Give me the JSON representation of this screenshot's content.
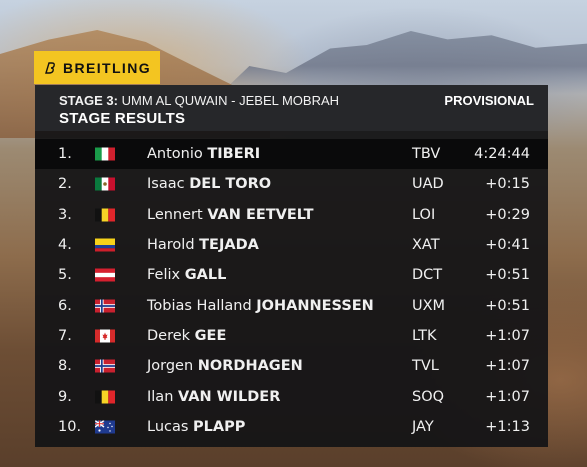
{
  "brand": {
    "name": "BREITLING"
  },
  "header": {
    "stage_number": "STAGE 3:",
    "stage_route": "UMM AL QUWAIN - JEBEL MOBRAH",
    "title": "STAGE RESULTS",
    "status": "PROVISIONAL"
  },
  "results": [
    {
      "pos": "1.",
      "flag": "italy",
      "first": "Antonio",
      "last": "TIBERI",
      "team": "TBV",
      "time": "4:24:44"
    },
    {
      "pos": "2.",
      "flag": "mexico",
      "first": "Isaac",
      "last": "DEL TORO",
      "team": "UAD",
      "time": "+0:15"
    },
    {
      "pos": "3.",
      "flag": "belgium",
      "first": "Lennert",
      "last": "VAN EETVELT",
      "team": "LOI",
      "time": "+0:29"
    },
    {
      "pos": "4.",
      "flag": "colombia",
      "first": "Harold",
      "last": "TEJADA",
      "team": "XAT",
      "time": "+0:41"
    },
    {
      "pos": "5.",
      "flag": "austria",
      "first": "Felix",
      "last": "GALL",
      "team": "DCT",
      "time": "+0:51"
    },
    {
      "pos": "6.",
      "flag": "norway",
      "first": "Tobias Halland",
      "last": "JOHANNESSEN",
      "team": "UXM",
      "time": "+0:51"
    },
    {
      "pos": "7.",
      "flag": "canada",
      "first": "Derek",
      "last": "GEE",
      "team": "LTK",
      "time": "+1:07"
    },
    {
      "pos": "8.",
      "flag": "norway",
      "first": "Jorgen",
      "last": "NORDHAGEN",
      "team": "TVL",
      "time": "+1:07"
    },
    {
      "pos": "9.",
      "flag": "belgium",
      "first": "Ilan",
      "last": "VAN WILDER",
      "team": "SOQ",
      "time": "+1:07"
    },
    {
      "pos": "10.",
      "flag": "australia",
      "first": "Lucas",
      "last": "PLAPP",
      "team": "JAY",
      "time": "+1:13"
    }
  ]
}
